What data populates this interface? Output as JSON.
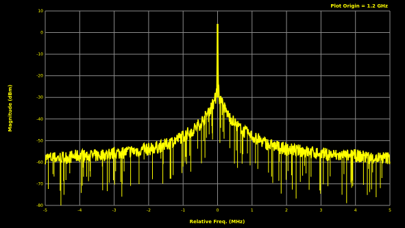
{
  "chart_data": {
    "type": "line",
    "annotation": "Plot Origin = 1.2 GHz",
    "xlabel": "Relative Freq. (MHz)",
    "ylabel": "Magnitude (dBm)",
    "xlim": [
      -5,
      5
    ],
    "ylim": [
      -80,
      10
    ],
    "x_ticks": [
      -5,
      -4,
      -3,
      -2,
      -1,
      0,
      1,
      2,
      3,
      4,
      5
    ],
    "y_ticks": [
      10,
      0,
      -10,
      -20,
      -30,
      -40,
      -50,
      -60,
      -70,
      -80
    ],
    "x_tick_labels": [
      "-5",
      "-4",
      "-3",
      "-2",
      "-1",
      "0",
      "1",
      "2",
      "3",
      "4",
      "5"
    ],
    "y_tick_labels": [
      "10",
      "0",
      "-10",
      "-20",
      "-30",
      "-40",
      "-50",
      "-60",
      "-70",
      "-80"
    ],
    "grid": true,
    "colors": {
      "background": "#000000",
      "trace": "#ffff00",
      "grid": "#8c8c8c"
    },
    "series": [
      {
        "x": [
          -5,
          -4.5,
          -4,
          -3.5,
          -3,
          -2.5,
          -2,
          -1.5,
          -1,
          -0.7,
          -0.5,
          -0.3,
          -0.2,
          -0.1,
          -0.05,
          -0.02,
          0,
          0.02,
          0.05,
          0.1,
          0.2,
          0.3,
          0.5,
          0.7,
          1,
          1.5,
          2,
          2.5,
          3,
          3.5,
          4,
          4.5,
          5
        ],
        "values": [
          -58,
          -58,
          -57,
          -57,
          -56,
          -55,
          -54,
          -52,
          -48,
          -45,
          -42,
          -38,
          -35,
          -32,
          -30,
          -24,
          4,
          -24,
          -30,
          -32,
          -35,
          -38,
          -42,
          -45,
          -48,
          -52,
          -54,
          -55,
          -56,
          -57,
          -57,
          -58,
          -58
        ]
      }
    ]
  }
}
